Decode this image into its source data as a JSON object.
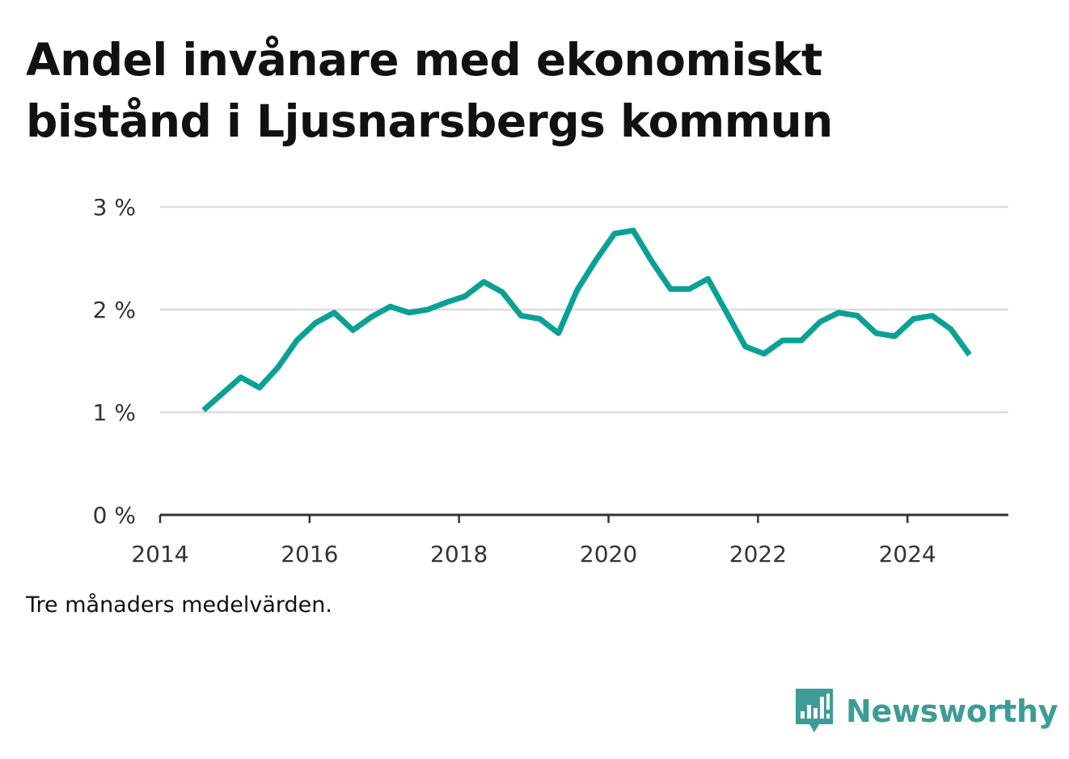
{
  "title": "Andel invånare med ekonomiskt bistånd i Ljusnarsbergs kommun",
  "note": "Tre månaders medelvärden.",
  "brand": {
    "name": "Newsworthy",
    "icon": "newsworthy-logo-icon",
    "color": "#3d9c97"
  },
  "colors": {
    "line": "#0aa195",
    "grid": "#dddddd",
    "axis": "#333333"
  },
  "chart_data": {
    "type": "line",
    "title": "Andel invånare med ekonomiskt bistånd i Ljusnarsbergs kommun",
    "xlabel": "",
    "ylabel": "",
    "xlim": [
      2014.0,
      2025.35
    ],
    "ylim": [
      0,
      3
    ],
    "xticks": [
      2014,
      2016,
      2018,
      2020,
      2022,
      2024
    ],
    "yticks": [
      0,
      1,
      2,
      3
    ],
    "ytick_labels": [
      "0 %",
      "1 %",
      "2 %",
      "3 %"
    ],
    "grid": true,
    "series": [
      {
        "x": [
          2014.58,
          2014.83,
          2015.08,
          2015.33,
          2015.58,
          2015.83,
          2016.08,
          2016.33,
          2016.58,
          2016.83,
          2017.08,
          2017.33,
          2017.58,
          2017.83,
          2018.08,
          2018.33,
          2018.58,
          2018.83,
          2019.08,
          2019.33,
          2019.58,
          2019.83,
          2020.08,
          2020.33,
          2020.58,
          2020.83,
          2021.08,
          2021.33,
          2021.58,
          2021.83,
          2022.08,
          2022.33,
          2022.58,
          2022.83,
          2023.08,
          2023.33,
          2023.58,
          2023.83,
          2024.08,
          2024.33,
          2024.58,
          2024.83
        ],
        "values": [
          1.02,
          1.18,
          1.34,
          1.24,
          1.44,
          1.7,
          1.87,
          1.97,
          1.8,
          1.93,
          2.03,
          1.97,
          2.0,
          2.07,
          2.13,
          2.27,
          2.17,
          1.94,
          1.91,
          1.77,
          2.19,
          2.48,
          2.74,
          2.77,
          2.47,
          2.2,
          2.2,
          2.3,
          1.97,
          1.64,
          1.57,
          1.7,
          1.7,
          1.88,
          1.97,
          1.94,
          1.77,
          1.74,
          1.91,
          1.94,
          1.81,
          1.56
        ]
      }
    ]
  }
}
